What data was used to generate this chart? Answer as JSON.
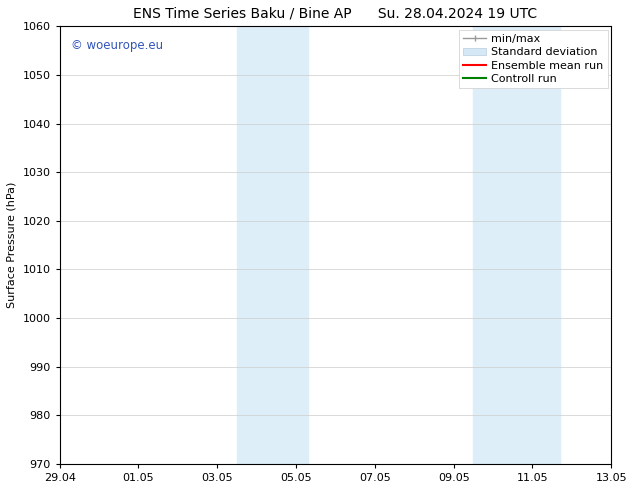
{
  "title_left": "ENS Time Series Baku / Bine AP",
  "title_right": "Su. 28.04.2024 19 UTC",
  "ylabel": "Surface Pressure (hPa)",
  "ylim": [
    970,
    1060
  ],
  "yticks": [
    970,
    980,
    990,
    1000,
    1010,
    1020,
    1030,
    1040,
    1050,
    1060
  ],
  "xtick_labels": [
    "29.04",
    "01.05",
    "03.05",
    "05.05",
    "07.05",
    "09.05",
    "11.05",
    "13.05"
  ],
  "xtick_positions": [
    0,
    2,
    4,
    6,
    8,
    10,
    12,
    14
  ],
  "shaded_bands": [
    {
      "x_start": 4.5,
      "x_end": 5.5,
      "color": "#ddeef8"
    },
    {
      "x_start": 5.5,
      "x_end": 6.3,
      "color": "#ddeef8"
    },
    {
      "x_start": 10.5,
      "x_end": 11.5,
      "color": "#ddeef8"
    },
    {
      "x_start": 11.5,
      "x_end": 12.7,
      "color": "#ddeef8"
    }
  ],
  "watermark_text": "© woeurope.eu",
  "watermark_color": "#3355bb",
  "legend_labels": [
    "min/max",
    "Standard deviation",
    "Ensemble mean run",
    "Controll run"
  ],
  "legend_colors_line": [
    "#999999",
    "#ccddee",
    "red",
    "green"
  ],
  "background_color": "#ffffff",
  "plot_bg_color": "#ffffff",
  "grid_color": "#cccccc",
  "title_fontsize": 10,
  "tick_fontsize": 8,
  "legend_fontsize": 8,
  "ylabel_fontsize": 8
}
